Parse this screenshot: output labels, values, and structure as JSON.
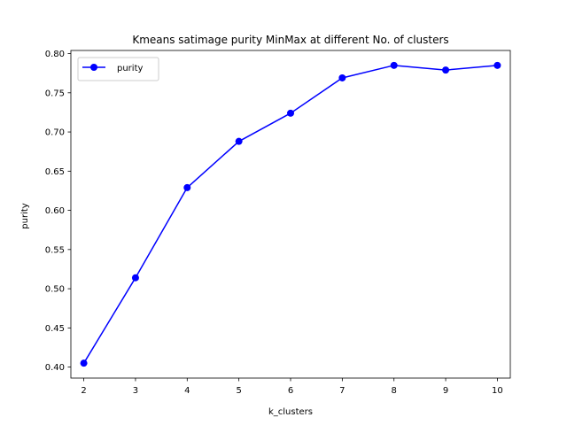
{
  "chart_data": {
    "type": "line",
    "title": "Kmeans satimage purity MinMax at different No. of clusters",
    "xlabel": "k_clusters",
    "ylabel": "purity",
    "x": [
      2,
      3,
      4,
      5,
      6,
      7,
      8,
      9,
      10
    ],
    "xlim": [
      1.75,
      10.25
    ],
    "ylim": [
      0.386,
      0.804
    ],
    "xticks": [
      2,
      3,
      4,
      5,
      6,
      7,
      8,
      9,
      10
    ],
    "yticks": [
      0.4,
      0.45,
      0.5,
      0.55,
      0.6,
      0.65,
      0.7,
      0.75,
      0.8
    ],
    "grid": false,
    "legend": "upper-left",
    "series": [
      {
        "name": "purity",
        "color": "#0000ff",
        "marker": "circle",
        "values": [
          0.405,
          0.514,
          0.629,
          0.688,
          0.724,
          0.769,
          0.785,
          0.779,
          0.785
        ]
      }
    ]
  }
}
